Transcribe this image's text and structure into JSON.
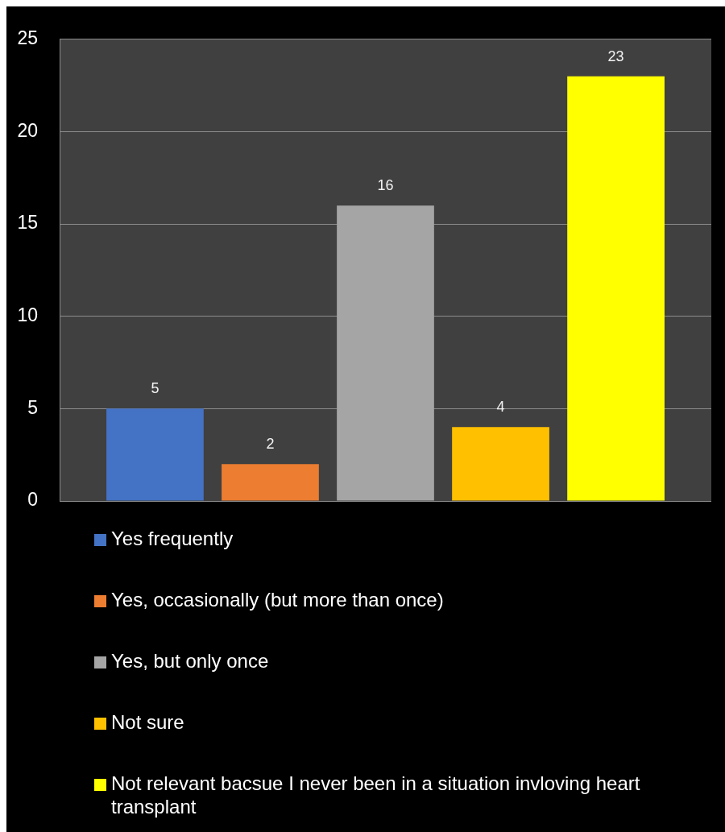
{
  "chart_data": {
    "type": "bar",
    "categories": [
      null
    ],
    "series": [
      {
        "name": "Yes frequently",
        "color": "#4472c4",
        "values": [
          5
        ]
      },
      {
        "name": "Yes, occasionally (but more than once)",
        "color": "#ed7d31",
        "values": [
          2
        ]
      },
      {
        "name": "Yes, but only once",
        "color": "#a5a5a5",
        "values": [
          16
        ]
      },
      {
        "name": "Not sure",
        "color": "#ffc000",
        "values": [
          4
        ]
      },
      {
        "name": "Not relevant bacsue I never been in a situation invloving heart transplant",
        "color": "#ffff00",
        "values": [
          23
        ]
      }
    ],
    "ylim": [
      0,
      25
    ],
    "yticks": [
      0,
      5,
      10,
      15,
      20,
      25
    ],
    "grid": "y",
    "legend": "bottom",
    "data_labels": true,
    "tick_labels": "y"
  }
}
